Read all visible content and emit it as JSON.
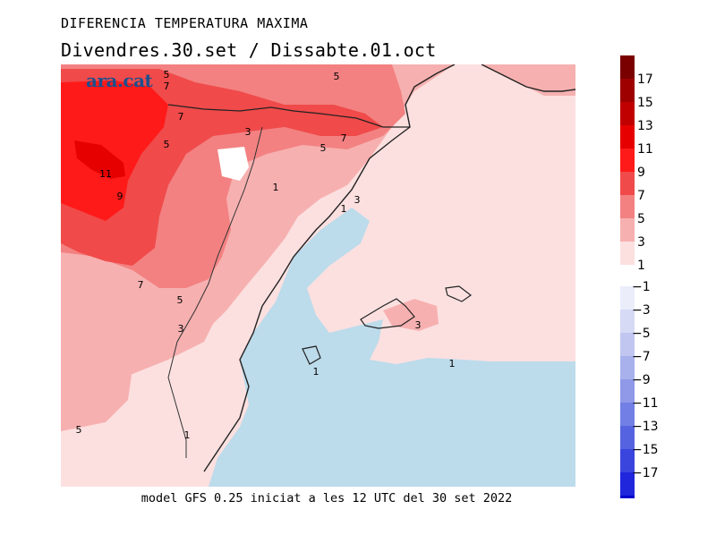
{
  "header": {
    "title": "DIFERENCIA TEMPERATURA MAXIMA",
    "subtitle": "Divendres.30.set / Dissabte.01.oct"
  },
  "footer": {
    "text": "model GFS 0.25 iniciat a les 12 UTC del 30 set 2022"
  },
  "logo": {
    "text": "ara.cat"
  },
  "map": {
    "contour_labels": [
      "5",
      "7",
      "5",
      "7",
      "3",
      "5",
      "7",
      "5",
      "11",
      "9",
      "1",
      "3",
      "1",
      "7",
      "5",
      "3",
      "3",
      "1",
      "1",
      "1",
      "5"
    ]
  },
  "legend": {
    "labels": [
      "17",
      "15",
      "13",
      "11",
      "9",
      "7",
      "5",
      "3",
      "1",
      "−1",
      "−3",
      "−5",
      "−7",
      "−9",
      "−11",
      "−13",
      "−15",
      "−17"
    ],
    "colors": [
      "#7a0000",
      "#9e0000",
      "#c00000",
      "#e60000",
      "#ff1a1a",
      "#f04a4a",
      "#f38181",
      "#f7b0b0",
      "#fce0e0",
      "#ebedfb",
      "#d6daf5",
      "#c0c6f0",
      "#a9b1ec",
      "#8f99e8",
      "#727fe4",
      "#5663e0",
      "#3a45de",
      "#1f26dc",
      "#0000cd"
    ]
  }
}
